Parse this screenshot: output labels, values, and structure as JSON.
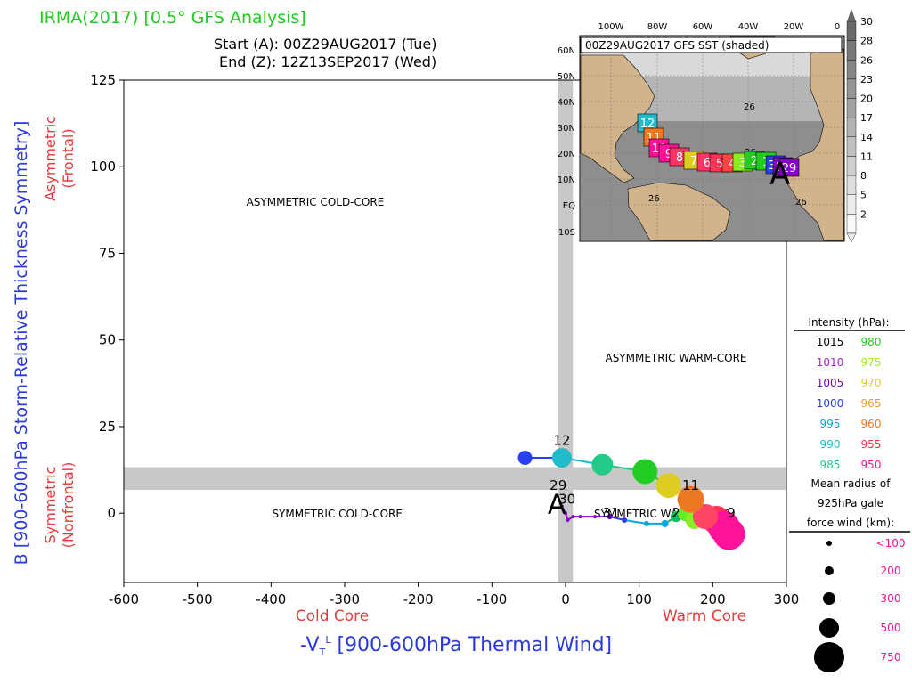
{
  "header": {
    "title": "IRMA(2017) [0.5° GFS Analysis]",
    "start": "Start (A): 00Z29AUG2017 (Tue)",
    "end": "End (Z): 12Z13SEP2017 (Wed)"
  },
  "colors": {
    "title": "#22cc22",
    "red_label": "#e83a3a",
    "blue_label": "#2b3ae0",
    "band": "#c8c8c8"
  },
  "chart_data": {
    "type": "scatter",
    "xlabel": "-V",
    "xlabel_sub": "T",
    "xlabel_sup": "L",
    "xlabel_rest": " [900-600hPa Thermal Wind]",
    "ylabel": "B [900-600hPa Storm-Relative Thickness Symmetry]",
    "xlim": [
      -600,
      300
    ],
    "ylim": [
      -20,
      125
    ],
    "xticks": [
      -600,
      -500,
      -400,
      -300,
      -200,
      -100,
      0,
      100,
      200,
      300
    ],
    "yticks": [
      0,
      25,
      50,
      75,
      100,
      125
    ],
    "x_side_labels": {
      "left": "Cold Core",
      "right": "Warm Core"
    },
    "y_side_labels": {
      "upper": [
        "Asymmetric",
        "(Frontal)"
      ],
      "lower": [
        "Symmetric",
        "(Nonfrontal)"
      ]
    },
    "quadrants": [
      {
        "label": "ASYMMETRIC COLD-CORE",
        "x": -340,
        "y": 90
      },
      {
        "label": "ASYMMETRIC WARM-CORE",
        "x": 150,
        "y": 45
      },
      {
        "label": "SYMMETRIC COLD-CORE",
        "x": -310,
        "y": 0
      },
      {
        "label": "SYMMETRIC WARM-CORE",
        "x": 130,
        "y": 0
      }
    ],
    "bands": {
      "x": [
        -10,
        10
      ],
      "y": [
        8,
        12
      ]
    },
    "track": [
      {
        "x": -5,
        "y": 2,
        "color": "#8800cc",
        "r": 2
      },
      {
        "x": 0,
        "y": 0,
        "color": "#8800cc",
        "r": 2
      },
      {
        "x": 3,
        "y": -2,
        "color": "#8800cc",
        "r": 2
      },
      {
        "x": 10,
        "y": -1,
        "color": "#8800cc",
        "r": 2
      },
      {
        "x": 20,
        "y": -1,
        "color": "#8800cc",
        "r": 2
      },
      {
        "x": 40,
        "y": -1,
        "color": "#8800cc",
        "r": 2
      },
      {
        "x": 60,
        "y": -1,
        "color": "#6600cc",
        "r": 3
      },
      {
        "x": 80,
        "y": -2,
        "color": "#2a40f0",
        "r": 3
      },
      {
        "x": 110,
        "y": -3,
        "color": "#00aadd",
        "r": 3
      },
      {
        "x": 135,
        "y": -3,
        "color": "#00aadd",
        "r": 4
      },
      {
        "x": 150,
        "y": -1,
        "color": "#00c060",
        "r": 6
      },
      {
        "x": 163,
        "y": 0,
        "color": "#66ee22",
        "r": 9
      },
      {
        "x": 175,
        "y": -2,
        "color": "#88ee22",
        "r": 10
      },
      {
        "x": 190,
        "y": -1,
        "color": "#ff3344",
        "r": 14
      },
      {
        "x": 205,
        "y": -2,
        "color": "#ff3355",
        "r": 16
      },
      {
        "x": 215,
        "y": -4,
        "color": "#ff1199",
        "r": 18
      },
      {
        "x": 222,
        "y": -6,
        "color": "#ff1199",
        "r": 18
      },
      {
        "x": 190,
        "y": -1,
        "color": "#ff4466",
        "r": 14
      },
      {
        "x": 170,
        "y": 4,
        "color": "#ee7722",
        "r": 15
      },
      {
        "x": 140,
        "y": 8,
        "color": "#ddcc22",
        "r": 14
      },
      {
        "x": 108,
        "y": 12,
        "color": "#22cc22",
        "r": 14
      },
      {
        "x": 50,
        "y": 14,
        "color": "#22cc88",
        "r": 12
      },
      {
        "x": -5,
        "y": 16,
        "color": "#22bbcc",
        "r": 11
      },
      {
        "x": -55,
        "y": 16,
        "color": "#2a40f0",
        "r": 8
      }
    ],
    "track_labels": [
      {
        "text": "A",
        "x": -12,
        "y": 3,
        "size": "big"
      },
      {
        "text": "29",
        "x": -10,
        "y": 8,
        "size": "small"
      },
      {
        "text": "30",
        "x": 2,
        "y": 4,
        "size": "small"
      },
      {
        "text": "31",
        "x": 62,
        "y": 0,
        "size": "small"
      },
      {
        "text": "2",
        "x": 150,
        "y": 0,
        "size": "small"
      },
      {
        "text": "9",
        "x": 225,
        "y": 0,
        "size": "small"
      },
      {
        "text": "11",
        "x": 170,
        "y": 8,
        "size": "small"
      },
      {
        "text": "12",
        "x": -5,
        "y": 21,
        "size": "small"
      }
    ]
  },
  "inset": {
    "title": "00Z29AUG2017 GFS SST (shaded)",
    "lon_labels": [
      "100W",
      "80W",
      "60W",
      "40W",
      "20W",
      "0"
    ],
    "lat_labels": [
      "60N",
      "50N",
      "40N",
      "30N",
      "20N",
      "10N",
      "EQ",
      "10S"
    ],
    "sst_labels": [
      "26",
      "26",
      "26",
      "26"
    ],
    "colorbar_labels": [
      "30",
      "28",
      "26",
      "23",
      "20",
      "17",
      "14",
      "11",
      "8",
      "5",
      "2"
    ],
    "boxes": [
      {
        "label": "12",
        "color": "#22bbcc"
      },
      {
        "label": "11",
        "color": "#ee7722"
      },
      {
        "label": "10",
        "color": "#ff1199"
      },
      {
        "label": "9",
        "color": "#ff1199"
      },
      {
        "label": "8",
        "color": "#ff3366"
      },
      {
        "label": "7",
        "color": "#ddcc22"
      },
      {
        "label": "6",
        "color": "#ff3366"
      },
      {
        "label": "5",
        "color": "#ff3355"
      },
      {
        "label": "4",
        "color": "#ff4444"
      },
      {
        "label": "3",
        "color": "#88ee22"
      },
      {
        "label": "2",
        "color": "#22cc22"
      },
      {
        "label": "1",
        "color": "#22cc22"
      },
      {
        "label": "31",
        "color": "#2a40f0"
      },
      {
        "label": "30",
        "color": "#8800cc"
      },
      {
        "label": "29",
        "color": "#8800cc"
      }
    ],
    "start_label": "A"
  },
  "intensity_legend": {
    "title": "Intensity (hPa):",
    "left": [
      {
        "label": "1015",
        "color": "#000000"
      },
      {
        "label": "1010",
        "color": "#aa22cc"
      },
      {
        "label": "1005",
        "color": "#7700cc"
      },
      {
        "label": "1000",
        "color": "#2a40f0"
      },
      {
        "label": "995",
        "color": "#00aadd"
      },
      {
        "label": "990",
        "color": "#22bbcc"
      },
      {
        "label": "985",
        "color": "#22cc88"
      }
    ],
    "right": [
      {
        "label": "980",
        "color": "#22cc22"
      },
      {
        "label": "975",
        "color": "#99ee22"
      },
      {
        "label": "970",
        "color": "#ddcc22"
      },
      {
        "label": "965",
        "color": "#ee9922"
      },
      {
        "label": "960",
        "color": "#ee7722"
      },
      {
        "label": "955",
        "color": "#ff3344"
      },
      {
        "label": "950",
        "color": "#ff1199"
      }
    ]
  },
  "radius_legend": {
    "title": [
      "Mean radius of",
      "925hPa gale",
      "force wind (km):"
    ],
    "items": [
      {
        "label": "<100",
        "r": 3
      },
      {
        "label": "200",
        "r": 5
      },
      {
        "label": "300",
        "r": 7
      },
      {
        "label": "500",
        "r": 11
      },
      {
        "label": "750",
        "r": 17
      }
    ],
    "label_color": "#ee1199"
  }
}
